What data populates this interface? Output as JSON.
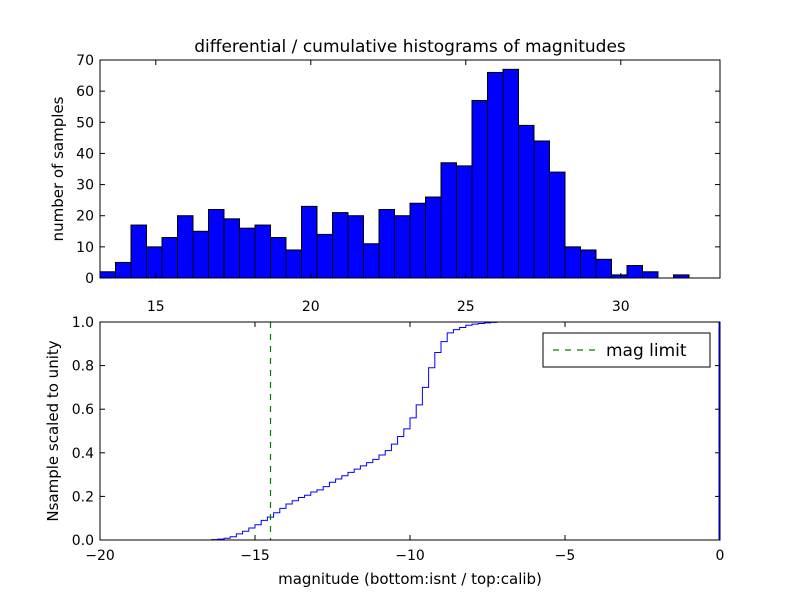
{
  "figure_title": "differential / cumulative histograms of magnitudes",
  "chart_data": [
    {
      "type": "bar",
      "title": "differential / cumulative histograms of magnitudes",
      "xlabel": "",
      "ylabel": "number of samples",
      "xlim": [
        13.2,
        33.2
      ],
      "ylim": [
        0,
        70
      ],
      "bin_width": 0.5,
      "first_bin_left": 13.2,
      "values": [
        2,
        5,
        17,
        10,
        13,
        20,
        15,
        22,
        19,
        16,
        17,
        13,
        9,
        23,
        14,
        21,
        20,
        11,
        22,
        20,
        24,
        26,
        37,
        36,
        57,
        66,
        67,
        49,
        44,
        34,
        10,
        9,
        6,
        1,
        4,
        2,
        0,
        1,
        0,
        0
      ],
      "xticks": [
        "15",
        "20",
        "25",
        "30"
      ],
      "xtick_values": [
        15,
        20,
        25,
        30
      ],
      "xticks_position": "bottom",
      "yticks": [
        "0",
        "10",
        "20",
        "30",
        "40",
        "50",
        "60",
        "70"
      ],
      "ytick_values": [
        0,
        10,
        20,
        30,
        40,
        50,
        60,
        70
      ],
      "bar_color": "#0000ff",
      "edge_color": "#000000"
    },
    {
      "type": "line",
      "title": "",
      "xlabel": "magnitude (bottom:isnt / top:calib)",
      "ylabel": "Nsample scaled to unity",
      "xlim": [
        -20,
        0
      ],
      "ylim": [
        0.0,
        1.0
      ],
      "series": [
        {
          "name": "cumulative",
          "style": "step",
          "color": "#0000ff",
          "x": [
            -20,
            -16.6,
            -16.4,
            -16.2,
            -16.0,
            -15.8,
            -15.6,
            -15.4,
            -15.2,
            -15.0,
            -14.8,
            -14.6,
            -14.4,
            -14.2,
            -14.0,
            -13.8,
            -13.6,
            -13.4,
            -13.2,
            -13.0,
            -12.8,
            -12.6,
            -12.4,
            -12.2,
            -12.0,
            -11.8,
            -11.6,
            -11.4,
            -11.2,
            -11.0,
            -10.8,
            -10.6,
            -10.4,
            -10.2,
            -10.0,
            -9.8,
            -9.6,
            -9.4,
            -9.2,
            -9.0,
            -8.8,
            -8.6,
            -8.4,
            -8.2,
            -8.0,
            -7.8,
            -7.6,
            -7.4,
            -7.2,
            -7.0,
            0
          ],
          "y": [
            0.0,
            0.0,
            0.002,
            0.004,
            0.008,
            0.015,
            0.028,
            0.04,
            0.055,
            0.07,
            0.09,
            0.105,
            0.125,
            0.145,
            0.165,
            0.18,
            0.195,
            0.205,
            0.22,
            0.23,
            0.245,
            0.265,
            0.28,
            0.295,
            0.31,
            0.325,
            0.34,
            0.355,
            0.37,
            0.39,
            0.41,
            0.44,
            0.475,
            0.51,
            0.56,
            0.62,
            0.7,
            0.79,
            0.86,
            0.91,
            0.95,
            0.965,
            0.975,
            0.985,
            0.99,
            0.993,
            0.996,
            0.998,
            1.0,
            1.0,
            1.0
          ]
        },
        {
          "name": "mag limit",
          "style": "vline-dashed",
          "color": "#008000",
          "x_value": -14.5
        }
      ],
      "xticks": [
        "−20",
        "−15",
        "−10",
        "−5",
        "0"
      ],
      "xtick_values": [
        -20,
        -15,
        -10,
        -5,
        0
      ],
      "yticks": [
        "0.0",
        "0.2",
        "0.4",
        "0.6",
        "0.8",
        "1.0"
      ],
      "ytick_values": [
        0.0,
        0.2,
        0.4,
        0.6,
        0.8,
        1.0
      ],
      "legend": {
        "entries": [
          "mag limit"
        ],
        "placement": "top-right"
      }
    }
  ]
}
